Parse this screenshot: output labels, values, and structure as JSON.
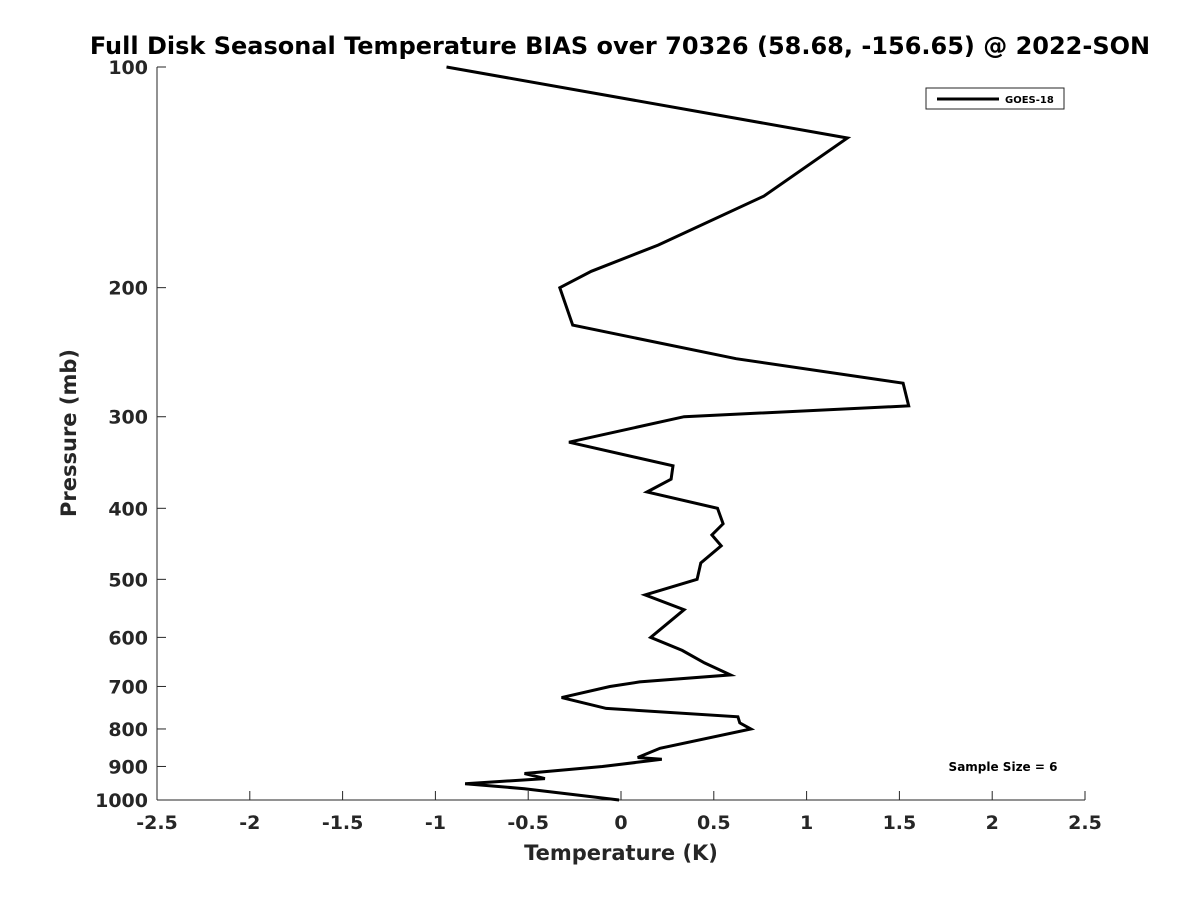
{
  "chart_data": {
    "type": "line",
    "title": "Full Disk Seasonal Temperature BIAS over 70326 (58.68, -156.65) @ 2022-SON",
    "xlabel": "Temperature (K)",
    "ylabel": "Pressure (mb)",
    "xlim": [
      -2.5,
      2.5
    ],
    "ylim": [
      100,
      1000
    ],
    "y_scale": "log",
    "y_reversed": true,
    "x_ticks": [
      -2.5,
      -2,
      -1.5,
      -1,
      -0.5,
      0,
      0.5,
      1,
      1.5,
      2,
      2.5
    ],
    "x_tick_labels": [
      "-2.5",
      "-2",
      "-1.5",
      "-1",
      "-0.5",
      "0",
      "0.5",
      "1",
      "1.5",
      "2",
      "2.5"
    ],
    "y_ticks": [
      100,
      200,
      300,
      400,
      500,
      600,
      700,
      800,
      900,
      1000
    ],
    "y_tick_labels": [
      "100",
      "200",
      "300",
      "400",
      "500",
      "600",
      "700",
      "800",
      "900",
      "1000"
    ],
    "grid": false,
    "legend": {
      "position": "top-right",
      "entries": [
        "GOES-18"
      ]
    },
    "annotations": [
      "Sample Size = 6"
    ],
    "series": [
      {
        "name": "GOES-18",
        "color": "#000000",
        "points": [
          {
            "x": -0.94,
            "y": 100
          },
          {
            "x": 1.22,
            "y": 125
          },
          {
            "x": 0.77,
            "y": 150
          },
          {
            "x": 0.2,
            "y": 175
          },
          {
            "x": -0.16,
            "y": 190
          },
          {
            "x": -0.33,
            "y": 200
          },
          {
            "x": -0.26,
            "y": 225
          },
          {
            "x": 0.62,
            "y": 250
          },
          {
            "x": 1.52,
            "y": 270
          },
          {
            "x": 1.55,
            "y": 290
          },
          {
            "x": 0.34,
            "y": 300
          },
          {
            "x": -0.28,
            "y": 325
          },
          {
            "x": 0.28,
            "y": 350
          },
          {
            "x": 0.27,
            "y": 365
          },
          {
            "x": 0.14,
            "y": 380
          },
          {
            "x": 0.52,
            "y": 400
          },
          {
            "x": 0.55,
            "y": 420
          },
          {
            "x": 0.49,
            "y": 435
          },
          {
            "x": 0.54,
            "y": 450
          },
          {
            "x": 0.43,
            "y": 475
          },
          {
            "x": 0.41,
            "y": 500
          },
          {
            "x": 0.13,
            "y": 525
          },
          {
            "x": 0.34,
            "y": 550
          },
          {
            "x": 0.16,
            "y": 600
          },
          {
            "x": 0.33,
            "y": 625
          },
          {
            "x": 0.45,
            "y": 650
          },
          {
            "x": 0.59,
            "y": 675
          },
          {
            "x": 0.1,
            "y": 690
          },
          {
            "x": -0.06,
            "y": 700
          },
          {
            "x": -0.32,
            "y": 725
          },
          {
            "x": -0.08,
            "y": 750
          },
          {
            "x": 0.63,
            "y": 770
          },
          {
            "x": 0.64,
            "y": 785
          },
          {
            "x": 0.7,
            "y": 800
          },
          {
            "x": 0.21,
            "y": 850
          },
          {
            "x": 0.09,
            "y": 875
          },
          {
            "x": 0.22,
            "y": 880
          },
          {
            "x": -0.1,
            "y": 900
          },
          {
            "x": -0.52,
            "y": 920
          },
          {
            "x": -0.41,
            "y": 935
          },
          {
            "x": -0.84,
            "y": 950
          },
          {
            "x": -0.52,
            "y": 965
          },
          {
            "x": -0.01,
            "y": 1000
          }
        ]
      }
    ]
  }
}
